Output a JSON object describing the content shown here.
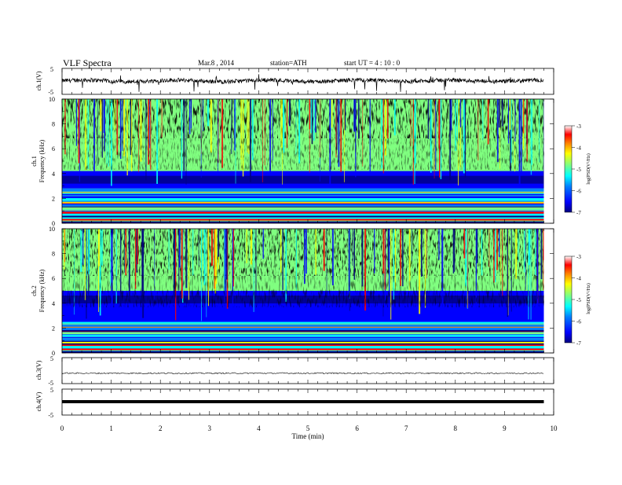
{
  "header": {
    "title": "VLF  Spectra",
    "date": "Mar.8  , 2014",
    "station": "station=ATH",
    "start": "start  UT  =   4  : 10 : 0"
  },
  "chart_data": [
    {
      "type": "line",
      "panel": "ch1-waveform",
      "ylabel": "ch.1(V)",
      "ylim": [
        -5,
        5
      ],
      "yticks": [
        "5",
        "-5"
      ],
      "series": [
        {
          "values_summary": "noisy signal around 0 V with frequent negative spikes"
        }
      ]
    },
    {
      "type": "heatmap",
      "panel": "ch1-spectrogram",
      "ylabel_top": "ch.1",
      "ylabel": "Frequency  (kHz)",
      "ylim": [
        0,
        10
      ],
      "yticks": [
        "0",
        "2",
        "4",
        "6",
        "8",
        "10"
      ],
      "colorbar": {
        "label": "log(PSD(V²/Hz)",
        "ticks": [
          "-3",
          "-4",
          "-5",
          "-6",
          "-7"
        ],
        "range": [
          -7,
          -3
        ]
      },
      "bands_khz": {
        "high_noise_above": 4.2,
        "quiet_band": [
          2.8,
          4.2
        ],
        "tonal_lines_below": 2.8
      }
    },
    {
      "type": "heatmap",
      "panel": "ch2-spectrogram",
      "ylabel_top": "ch.2",
      "ylabel": "Frequency  (kHz)",
      "ylim": [
        0,
        10
      ],
      "yticks": [
        "0",
        "2",
        "4",
        "6",
        "8",
        "10"
      ],
      "colorbar": {
        "label": "log(PSD(V²/Hz)",
        "ticks": [
          "-3",
          "-4",
          "-5",
          "-6",
          "-7"
        ],
        "range": [
          -7,
          -3
        ]
      },
      "bands_khz": {
        "high_noise_above": 5.0,
        "quiet_band": [
          2.5,
          5.0
        ],
        "tonal_lines_below": 2.5
      }
    },
    {
      "type": "line",
      "panel": "ch3-waveform",
      "ylabel": "ch.3(V)",
      "ylim": [
        -5,
        5
      ],
      "yticks": [
        "5",
        "-5"
      ],
      "series": [
        {
          "values_summary": "flat trace near -1 V"
        }
      ]
    },
    {
      "type": "line",
      "panel": "ch4-waveform",
      "ylabel": "ch.4(V)",
      "ylim": [
        -5,
        5
      ],
      "yticks": [
        "5",
        "-5"
      ],
      "series": [
        {
          "values_summary": "thick flat trace near 0 V"
        }
      ]
    }
  ],
  "xaxis": {
    "label": "Time  (min)",
    "ticks": [
      "0",
      "1",
      "2",
      "3",
      "4",
      "5",
      "6",
      "7",
      "8",
      "9",
      "10"
    ],
    "xlim": [
      0,
      10
    ],
    "data_end": 9.8
  },
  "colors": {
    "scale": [
      "#00007f",
      "#0000ff",
      "#0080ff",
      "#00ffff",
      "#80ff80",
      "#ffff00",
      "#ff8000",
      "#ff0000",
      "#7f0000"
    ]
  }
}
